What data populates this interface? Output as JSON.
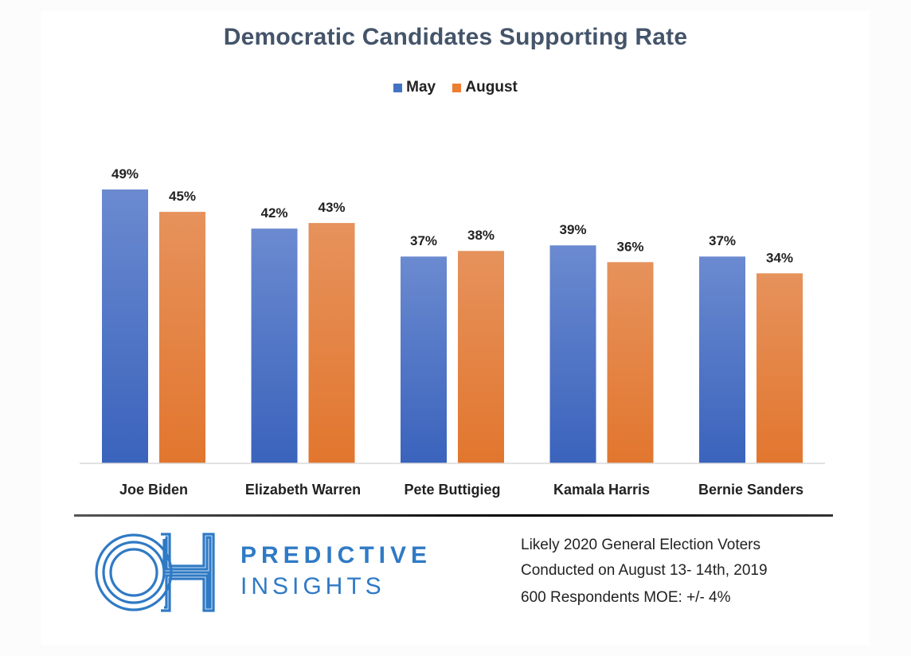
{
  "chart_data": {
    "type": "bar",
    "title": "Democratic Candidates Supporting Rate",
    "categories": [
      "Joe Biden",
      "Elizabeth Warren",
      "Pete Buttigieg",
      "Kamala Harris",
      "Bernie Sanders"
    ],
    "series": [
      {
        "name": "May",
        "color": "#4472c4",
        "values": [
          49,
          42,
          37,
          39,
          37
        ],
        "labels": [
          "49%",
          "42%",
          "37%",
          "39%",
          "37%"
        ]
      },
      {
        "name": "August",
        "color": "#ed7d31",
        "values": [
          45,
          43,
          38,
          36,
          34
        ],
        "labels": [
          "45%",
          "43%",
          "38%",
          "36%",
          "34%"
        ]
      }
    ],
    "xlabel": "",
    "ylabel": "",
    "ylim": [
      0,
      50
    ],
    "grid": false,
    "legend_position": "top-center",
    "value_format": "percent"
  },
  "footer": {
    "brand_line1": "PREDICTIVE",
    "brand_line2": "INSIGHTS",
    "brand_color": "#2f7ac5",
    "notes": [
      "Likely 2020 General Election Voters",
      "Conducted on August 13- 14th, 2019",
      "600 Respondents  MOE: +/- 4%"
    ]
  }
}
